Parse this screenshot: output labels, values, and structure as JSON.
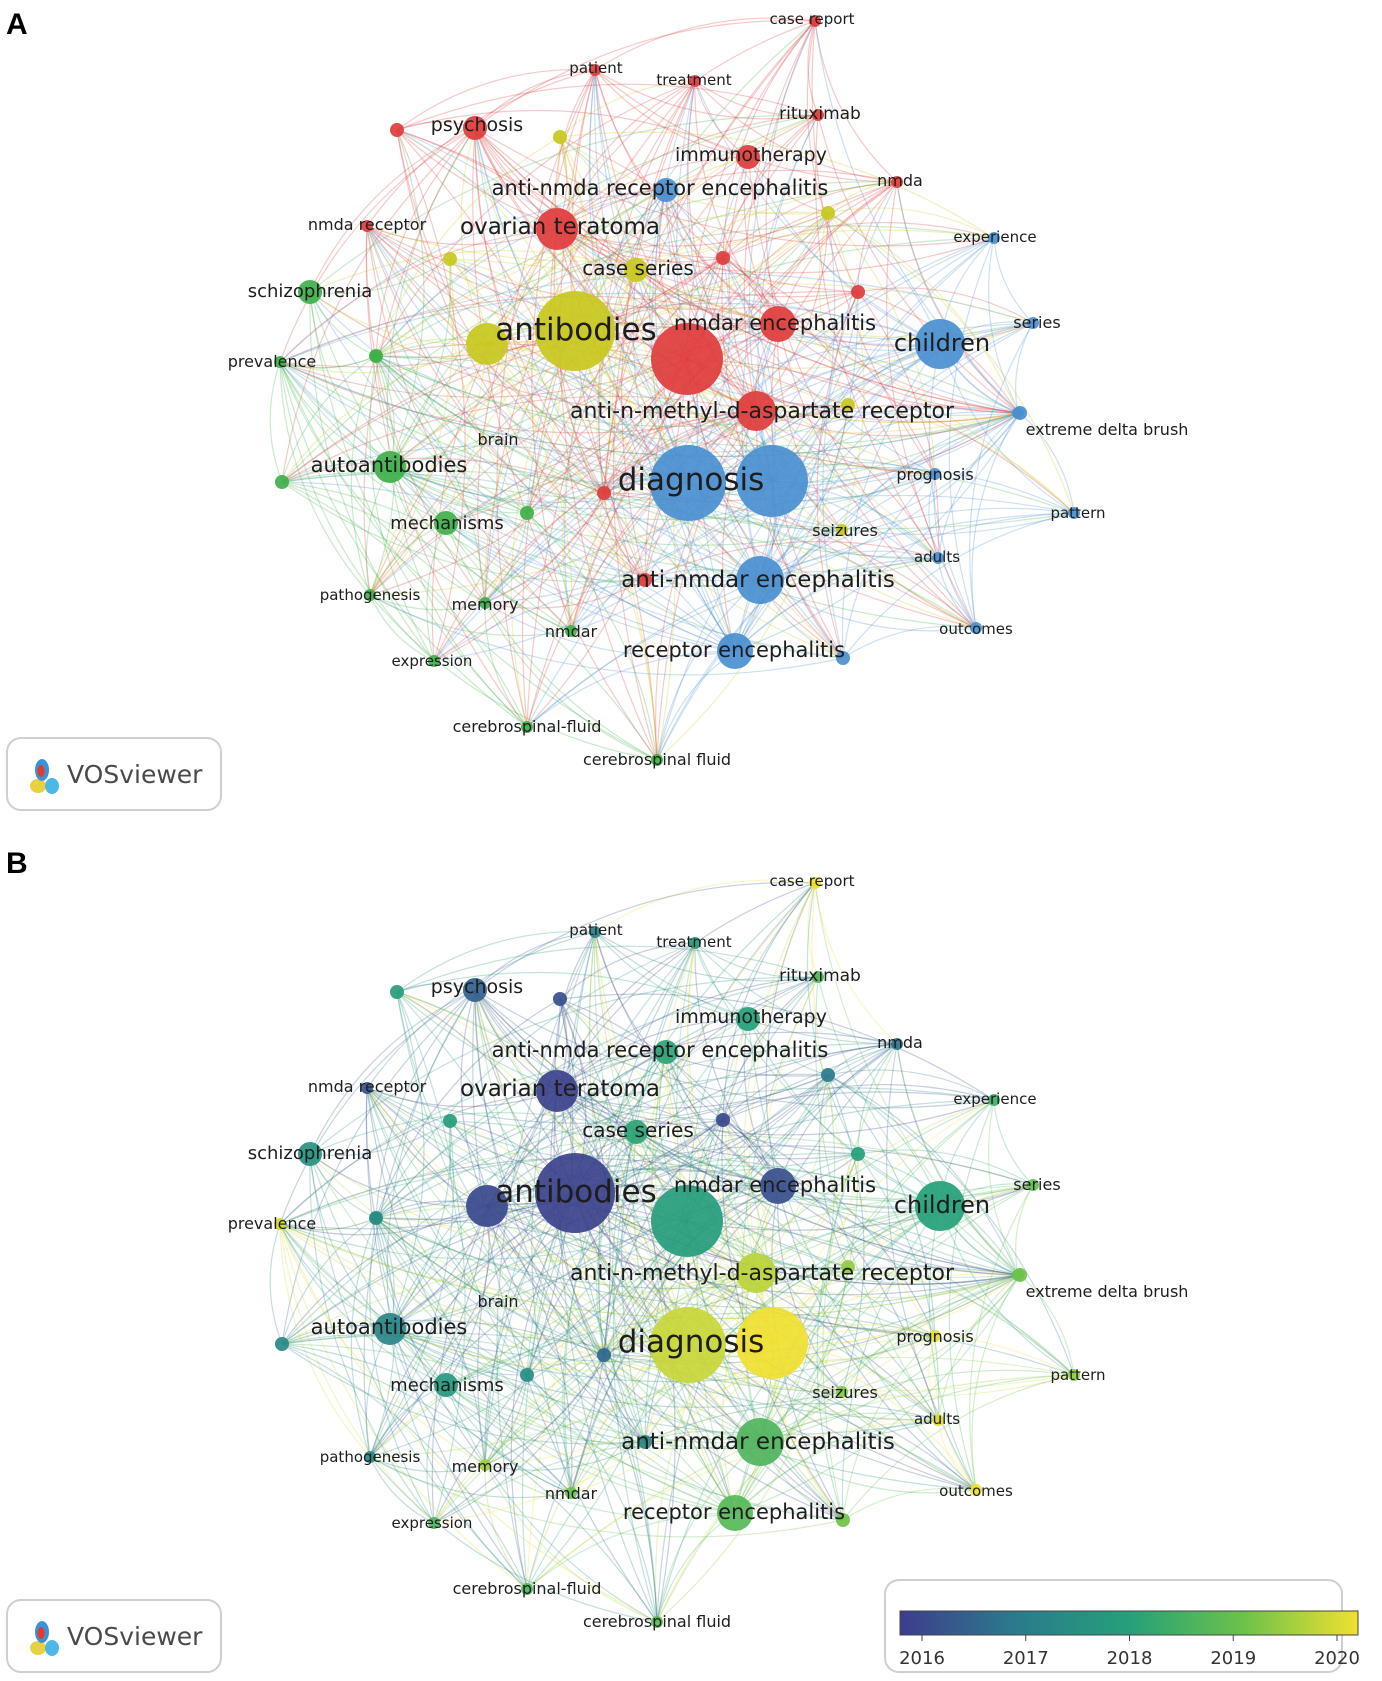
{
  "panels": [
    {
      "letter": "A",
      "mode": "cluster"
    },
    {
      "letter": "B",
      "mode": "overlay"
    }
  ],
  "logo_text": "VOSviewer",
  "cluster_colors": {
    "red": "#e03c3c",
    "green": "#3fb04a",
    "blue": "#4a8fd0",
    "yellow": "#c8c81e"
  },
  "colorbar": {
    "ticks": [
      "2016",
      "2017",
      "2018",
      "2019",
      "2020"
    ],
    "stops": [
      "#3e3c8c",
      "#2b7a8c",
      "#25a07a",
      "#6cc24a",
      "#f0e030"
    ]
  },
  "nodes": [
    {
      "id": "case_report",
      "label": "case report",
      "cluster": "red",
      "year": 2020.0,
      "size": "s"
    },
    {
      "id": "patient",
      "label": "patient",
      "cluster": "red",
      "year": 2017.2,
      "size": "s"
    },
    {
      "id": "treatment",
      "label": "treatment",
      "cluster": "red",
      "year": 2017.8,
      "size": "s"
    },
    {
      "id": "rituximab",
      "label": "rituximab",
      "cluster": "red",
      "year": 2018.6,
      "size": "s"
    },
    {
      "id": "psychosis",
      "label": "psychosis",
      "cluster": "red",
      "year": 2016.6,
      "size": "m"
    },
    {
      "id": "immunotherapy",
      "label": "immunotherapy",
      "cluster": "red",
      "year": 2018.0,
      "size": "m"
    },
    {
      "id": "anti_nmda_re",
      "label": "anti-nmda receptor encephalitis",
      "cluster": "blue",
      "year": 2018.1,
      "size": "m"
    },
    {
      "id": "nmda",
      "label": "nmda",
      "cluster": "red",
      "year": 2016.9,
      "size": "s"
    },
    {
      "id": "nmda_receptor",
      "label": "nmda receptor",
      "cluster": "red",
      "year": 2016.4,
      "size": "s"
    },
    {
      "id": "ovarian_teratoma",
      "label": "ovarian teratoma",
      "cluster": "red",
      "year": 2016.1,
      "size": "l"
    },
    {
      "id": "experience",
      "label": "experience",
      "cluster": "blue",
      "year": 2018.4,
      "size": "s"
    },
    {
      "id": "case_series",
      "label": "case series",
      "cluster": "yellow",
      "year": 2018.1,
      "size": "m"
    },
    {
      "id": "schizophrenia",
      "label": "schizophrenia",
      "cluster": "green",
      "year": 2017.6,
      "size": "m"
    },
    {
      "id": "antibodies",
      "label": "antibodies",
      "cluster": "yellow",
      "year": 2016.1,
      "size": "xl"
    },
    {
      "id": "nmdar_enc",
      "label": "nmdar encephalitis",
      "cluster": "red",
      "year": 2016.3,
      "size": "l"
    },
    {
      "id": "series",
      "label": "series",
      "cluster": "blue",
      "year": 2018.9,
      "size": "s"
    },
    {
      "id": "children",
      "label": "children",
      "cluster": "blue",
      "year": 2018.0,
      "size": "l"
    },
    {
      "id": "prevalence",
      "label": "prevalence",
      "cluster": "green",
      "year": 2019.8,
      "size": "s"
    },
    {
      "id": "anmda_receptor",
      "label": "anti-n-methyl-d-aspartate receptor",
      "cluster": "red",
      "year": 2019.6,
      "size": "l"
    },
    {
      "id": "extreme_delta",
      "label": "extreme delta brush",
      "cluster": "blue",
      "year": 2019.0,
      "size": "s"
    },
    {
      "id": "brain",
      "label": "brain",
      "cluster": "green",
      "year": 2017.5,
      "size": "s"
    },
    {
      "id": "autoantibodies",
      "label": "autoantibodies",
      "cluster": "green",
      "year": 2017.3,
      "size": "l"
    },
    {
      "id": "diagnosis",
      "label": "diagnosis",
      "cluster": "blue",
      "year": 2019.7,
      "size": "xl"
    },
    {
      "id": "prognosis",
      "label": "prognosis",
      "cluster": "blue",
      "year": 2019.9,
      "size": "s"
    },
    {
      "id": "pattern",
      "label": "pattern",
      "cluster": "blue",
      "year": 2019.3,
      "size": "s"
    },
    {
      "id": "mechanisms",
      "label": "mechanisms",
      "cluster": "green",
      "year": 2017.8,
      "size": "m"
    },
    {
      "id": "seizures",
      "label": "seizures",
      "cluster": "yellow",
      "year": 2019.2,
      "size": "s"
    },
    {
      "id": "adults",
      "label": "adults",
      "cluster": "blue",
      "year": 2019.9,
      "size": "s"
    },
    {
      "id": "anti_nmdar_enc",
      "label": "anti-nmdar encephalitis",
      "cluster": "blue",
      "year": 2018.6,
      "size": "l"
    },
    {
      "id": "pathogenesis",
      "label": "pathogenesis",
      "cluster": "green",
      "year": 2017.4,
      "size": "s"
    },
    {
      "id": "memory",
      "label": "memory",
      "cluster": "green",
      "year": 2019.4,
      "size": "s"
    },
    {
      "id": "nmdar",
      "label": "nmdar",
      "cluster": "green",
      "year": 2019.0,
      "size": "s"
    },
    {
      "id": "outcomes",
      "label": "outcomes",
      "cluster": "blue",
      "year": 2020.0,
      "size": "s"
    },
    {
      "id": "receptor_enc",
      "label": "receptor encephalitis",
      "cluster": "blue",
      "year": 2018.7,
      "size": "l"
    },
    {
      "id": "expression",
      "label": "expression",
      "cluster": "green",
      "year": 2018.6,
      "size": "s"
    },
    {
      "id": "csf_dash",
      "label": "cerebrospinal-fluid",
      "cluster": "green",
      "year": 2018.6,
      "size": "s"
    },
    {
      "id": "csf",
      "label": "cerebrospinal fluid",
      "cluster": "green",
      "year": 2018.8,
      "size": "s"
    },
    {
      "id": "u_red_big",
      "label": "",
      "cluster": "red",
      "year": 2017.9,
      "size": "xl"
    },
    {
      "id": "u_blue_diag2",
      "label": "",
      "cluster": "blue",
      "year": 2020.0,
      "size": "xl"
    },
    {
      "id": "u_yellow_ab",
      "label": "",
      "cluster": "yellow",
      "year": 2016.2,
      "size": "l"
    }
  ]
}
